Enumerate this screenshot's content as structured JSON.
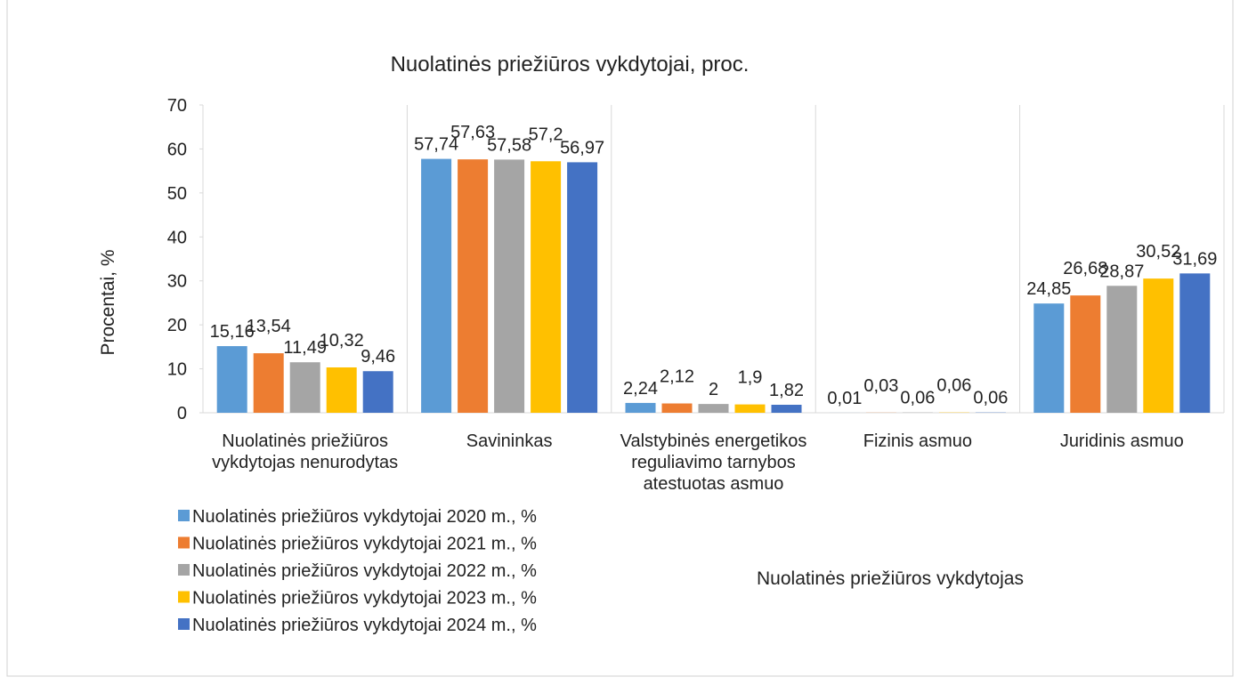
{
  "chart_data": {
    "type": "bar",
    "title": "Nuolatinės priežiūros vykdytojai, proc.",
    "x_label": "Nuolatinės priežiūros vykdytojas",
    "y_label": "Procentai, %",
    "categories": [
      "Nuolatinės priežiūros vykdytojas nenurodytas",
      "Savininkas",
      "Valstybinės energetikos reguliavimo tarnybos atestuotas asmuo",
      "Fizinis asmuo",
      "Juridinis asmuo"
    ],
    "series": [
      {
        "name": "Nuolatinės priežiūros vykdytojai 2020 m., %",
        "color": "#5b9bd5",
        "values": [
          15.16,
          57.74,
          2.24,
          0.01,
          24.85
        ],
        "value_labels": [
          "15,16",
          "57,74",
          "2,24",
          "0,01",
          "24,85"
        ]
      },
      {
        "name": "Nuolatinės priežiūros vykdytojai 2021 m., %",
        "color": "#ed7d31",
        "values": [
          13.54,
          57.63,
          2.12,
          0.03,
          26.68
        ],
        "value_labels": [
          "13,54",
          "57,63",
          "2,12",
          "0,03",
          "26,68"
        ]
      },
      {
        "name": "Nuolatinės priežiūros vykdytojai 2022 m., %",
        "color": "#a5a5a5",
        "values": [
          11.49,
          57.58,
          2,
          0.06,
          28.87
        ],
        "value_labels": [
          "11,49",
          "57,58",
          "2",
          "0,06",
          "28,87"
        ]
      },
      {
        "name": "Nuolatinės priežiūros vykdytojai 2023 m., %",
        "color": "#ffc000",
        "values": [
          10.32,
          57.2,
          1.9,
          0.06,
          30.52
        ],
        "value_labels": [
          "10,32",
          "57,2",
          "1,9",
          "0,06",
          "30,52"
        ]
      },
      {
        "name": "Nuolatinės priežiūros vykdytojai 2024 m., %",
        "color": "#4472c4",
        "values": [
          9.46,
          56.97,
          1.82,
          0.06,
          31.69
        ],
        "value_labels": [
          "9,46",
          "56,97",
          "1,82",
          "0,06",
          "31,69"
        ]
      }
    ],
    "ylim": [
      0,
      70
    ],
    "yticks": [
      0,
      10,
      20,
      30,
      40,
      50,
      60,
      70
    ]
  }
}
